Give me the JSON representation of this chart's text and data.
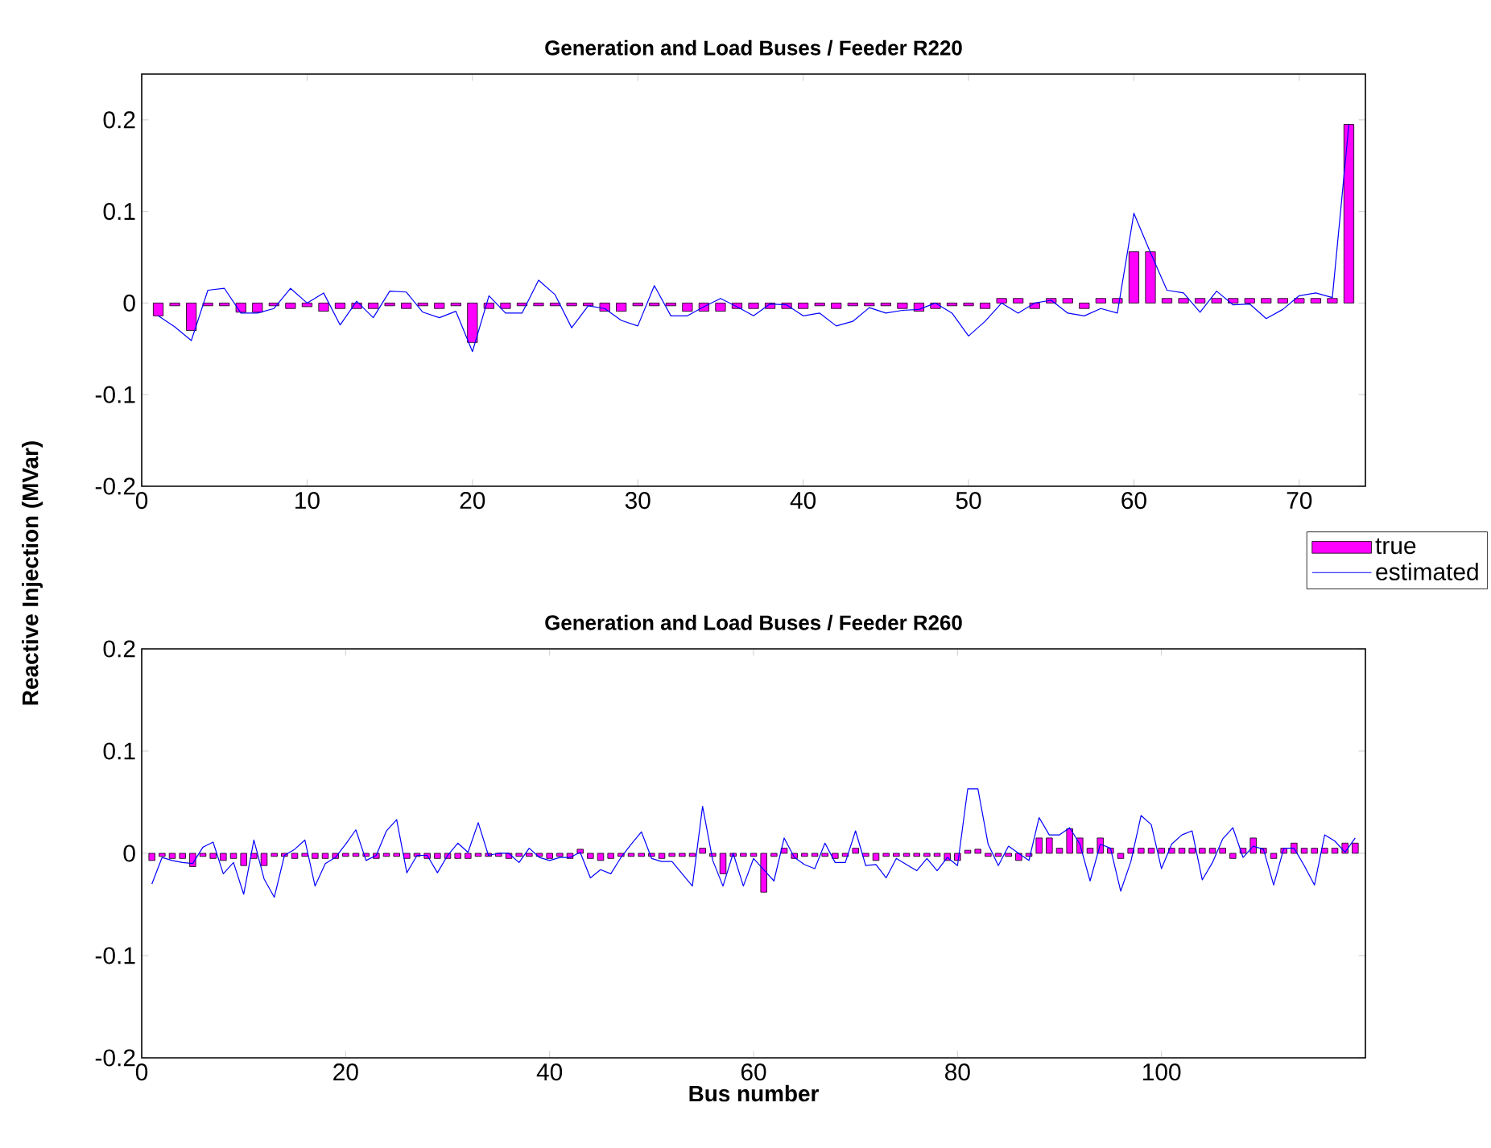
{
  "chart_data": [
    {
      "type": "bar",
      "title": "Generation and Load Buses / Feeder R220",
      "ylabel": "Reactive Injection (MVar)",
      "x": [
        1,
        2,
        3,
        4,
        5,
        6,
        7,
        8,
        9,
        10,
        11,
        12,
        13,
        14,
        15,
        16,
        17,
        18,
        19,
        20,
        21,
        22,
        23,
        24,
        25,
        26,
        27,
        28,
        29,
        30,
        31,
        32,
        33,
        34,
        35,
        36,
        37,
        38,
        39,
        40,
        41,
        42,
        43,
        44,
        45,
        46,
        47,
        48,
        49,
        50,
        51,
        52,
        53,
        54,
        55,
        56,
        57,
        58,
        59,
        60,
        61,
        62,
        63,
        64,
        65,
        66,
        67,
        68,
        69,
        70,
        71,
        72,
        73
      ],
      "series": [
        {
          "name": "true",
          "color": "#ff00ff",
          "values": [
            -0.014,
            -0.003,
            -0.03,
            -0.003,
            -0.003,
            -0.01,
            -0.01,
            -0.003,
            -0.006,
            -0.004,
            -0.009,
            -0.006,
            -0.006,
            -0.006,
            -0.003,
            -0.006,
            -0.003,
            -0.006,
            -0.003,
            -0.043,
            -0.006,
            -0.006,
            -0.003,
            -0.003,
            -0.003,
            -0.003,
            -0.003,
            -0.009,
            -0.009,
            -0.003,
            -0.003,
            -0.003,
            -0.009,
            -0.009,
            -0.009,
            -0.006,
            -0.006,
            -0.006,
            -0.006,
            -0.006,
            -0.003,
            -0.006,
            -0.003,
            -0.003,
            -0.003,
            -0.006,
            -0.009,
            -0.006,
            -0.003,
            -0.003,
            -0.006,
            0.005,
            0.005,
            -0.006,
            0.005,
            0.005,
            -0.006,
            0.005,
            0.005,
            0.056,
            0.056,
            0.005,
            0.005,
            0.005,
            0.005,
            0.005,
            0.005,
            0.005,
            0.005,
            0.005,
            0.005,
            0.005,
            0.195
          ]
        },
        {
          "name": "estimated",
          "type": "line",
          "color": "#0000ff",
          "values": [
            -0.014,
            -0.026,
            -0.041,
            0.014,
            0.016,
            -0.011,
            -0.011,
            -0.006,
            0.016,
            0.0,
            0.011,
            -0.024,
            0.002,
            -0.016,
            0.013,
            0.012,
            -0.01,
            -0.016,
            -0.009,
            -0.053,
            0.008,
            -0.011,
            -0.011,
            0.025,
            0.009,
            -0.027,
            -0.003,
            -0.006,
            -0.019,
            -0.025,
            0.019,
            -0.014,
            -0.014,
            -0.004,
            0.005,
            -0.004,
            -0.014,
            -0.001,
            -0.002,
            -0.014,
            -0.011,
            -0.025,
            -0.02,
            -0.005,
            -0.011,
            -0.008,
            -0.007,
            0.0,
            -0.011,
            -0.036,
            -0.02,
            0.0,
            -0.011,
            0.0,
            0.003,
            -0.011,
            -0.014,
            -0.006,
            -0.011,
            0.098,
            0.055,
            0.014,
            0.011,
            -0.01,
            0.013,
            -0.002,
            -0.001,
            -0.017,
            -0.007,
            0.008,
            0.011,
            0.006,
            0.195
          ]
        }
      ],
      "xlim": [
        0,
        74
      ],
      "ylim": [
        -0.2,
        0.25
      ],
      "xticks": [
        0,
        10,
        20,
        30,
        40,
        50,
        60,
        70
      ],
      "yticks": [
        -0.2,
        -0.1,
        0,
        0.1,
        0.2
      ],
      "legend": "bottom right"
    },
    {
      "type": "bar",
      "title": "Generation and Load Buses / Feeder R260",
      "xlabel": "Bus number",
      "x": [
        1,
        2,
        3,
        4,
        5,
        6,
        7,
        8,
        9,
        10,
        11,
        12,
        13,
        14,
        15,
        16,
        17,
        18,
        19,
        20,
        21,
        22,
        23,
        24,
        25,
        26,
        27,
        28,
        29,
        30,
        31,
        32,
        33,
        34,
        35,
        36,
        37,
        38,
        39,
        40,
        41,
        42,
        43,
        44,
        45,
        46,
        47,
        48,
        49,
        50,
        51,
        52,
        53,
        54,
        55,
        56,
        57,
        58,
        59,
        60,
        61,
        62,
        63,
        64,
        65,
        66,
        67,
        68,
        69,
        70,
        71,
        72,
        73,
        74,
        75,
        76,
        77,
        78,
        79,
        80,
        81,
        82,
        83,
        84,
        85,
        86,
        87,
        88,
        89,
        90,
        91,
        92,
        93,
        94,
        95,
        96,
        97,
        98,
        99,
        100,
        101,
        102,
        103,
        104,
        105,
        106,
        107,
        108,
        109,
        110,
        111,
        112,
        113,
        114,
        115,
        116,
        117,
        118,
        119
      ],
      "series": [
        {
          "color": "#ff00ff",
          "values": [
            -0.007,
            -0.003,
            -0.005,
            -0.005,
            -0.013,
            -0.003,
            -0.005,
            -0.007,
            -0.005,
            -0.012,
            -0.005,
            -0.012,
            -0.003,
            -0.003,
            -0.005,
            -0.003,
            -0.005,
            -0.005,
            -0.005,
            -0.003,
            -0.003,
            -0.003,
            -0.005,
            -0.003,
            -0.003,
            -0.005,
            -0.003,
            -0.005,
            -0.005,
            -0.005,
            -0.005,
            -0.005,
            -0.003,
            -0.003,
            -0.003,
            -0.005,
            -0.003,
            -0.003,
            -0.003,
            -0.005,
            -0.003,
            -0.005,
            0.004,
            -0.005,
            -0.007,
            -0.005,
            -0.003,
            -0.003,
            -0.003,
            -0.003,
            -0.005,
            -0.003,
            -0.003,
            -0.003,
            0.005,
            -0.003,
            -0.02,
            -0.003,
            -0.003,
            -0.003,
            -0.038,
            -0.003,
            0.005,
            -0.005,
            -0.003,
            -0.003,
            -0.003,
            -0.005,
            -0.003,
            0.005,
            -0.003,
            -0.007,
            -0.003,
            -0.003,
            -0.003,
            -0.003,
            -0.003,
            -0.003,
            -0.007,
            -0.007,
            0.003,
            0.004,
            -0.003,
            -0.003,
            -0.003,
            -0.007,
            -0.003,
            0.015,
            0.015,
            0.005,
            0.024,
            0.015,
            0.005,
            0.015,
            0.005,
            -0.005,
            0.005,
            0.005,
            0.005,
            0.005,
            0.005,
            0.005,
            0.005,
            0.005,
            0.005,
            0.005,
            -0.005,
            0.005,
            0.015,
            0.005,
            -0.005,
            0.005,
            0.01,
            0.005,
            0.005,
            0.005,
            0.005,
            0.01,
            0.01
          ]
        },
        {
          "type": "line",
          "color": "#0000ff",
          "values": [
            -0.03,
            -0.004,
            -0.007,
            -0.009,
            -0.01,
            0.006,
            0.011,
            -0.02,
            -0.009,
            -0.04,
            0.013,
            -0.025,
            -0.043,
            -0.002,
            0.004,
            0.013,
            -0.032,
            -0.01,
            -0.004,
            0.009,
            0.023,
            -0.007,
            -0.002,
            0.022,
            0.033,
            -0.019,
            -0.002,
            -0.002,
            -0.019,
            -0.002,
            0.01,
            0.001,
            0.03,
            -0.002,
            0.0,
            0.0,
            -0.009,
            0.005,
            -0.004,
            -0.007,
            -0.004,
            -0.004,
            0.001,
            -0.024,
            -0.016,
            -0.02,
            -0.004,
            0.009,
            0.021,
            -0.005,
            -0.008,
            -0.008,
            -0.02,
            -0.032,
            0.046,
            -0.007,
            -0.032,
            0.0,
            -0.032,
            -0.005,
            -0.016,
            -0.027,
            0.015,
            -0.004,
            -0.011,
            -0.015,
            0.01,
            -0.009,
            -0.009,
            0.022,
            -0.012,
            -0.011,
            -0.024,
            -0.005,
            -0.011,
            -0.017,
            -0.005,
            -0.017,
            -0.004,
            -0.012,
            0.063,
            0.063,
            0.009,
            -0.012,
            0.007,
            0.0,
            -0.007,
            0.035,
            0.018,
            0.018,
            0.025,
            0.009,
            -0.027,
            0.009,
            0.005,
            -0.037,
            -0.008,
            0.037,
            0.028,
            -0.015,
            0.009,
            0.018,
            0.022,
            -0.026,
            -0.009,
            0.014,
            0.025,
            -0.004,
            0.007,
            0.004,
            -0.031,
            0.005,
            0.005,
            -0.012,
            -0.031,
            0.018,
            0.012,
            0.001,
            0.015
          ]
        }
      ],
      "xlim": [
        0,
        120
      ],
      "ylim": [
        -0.2,
        0.2
      ],
      "xticks": [
        0,
        20,
        40,
        60,
        80,
        100
      ],
      "yticks": [
        -0.2,
        -0.1,
        0,
        0.1,
        0.2
      ]
    }
  ]
}
